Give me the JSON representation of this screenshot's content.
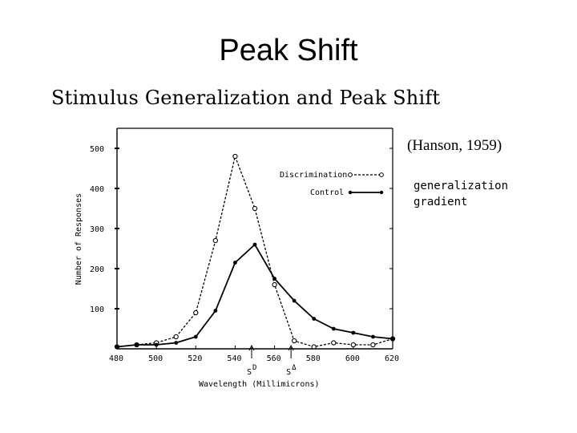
{
  "slide": {
    "title": "Peak Shift",
    "subtitle": "Stimulus Generalization and Peak Shift",
    "citation": "(Hanson, 1959)",
    "annotation_line1": "generalization",
    "annotation_line2": "gradient"
  },
  "chart_data": {
    "type": "line",
    "title": "Stimulus Generalization and Peak Shift",
    "xlabel": "Wavelength (Millimicrons)",
    "ylabel": "Number of Responses",
    "xlim": [
      480,
      620
    ],
    "ylim": [
      0,
      550
    ],
    "xticks": [
      480,
      500,
      520,
      540,
      560,
      580,
      600,
      620
    ],
    "yticks": [
      100,
      200,
      300,
      400,
      500
    ],
    "x": [
      480,
      490,
      500,
      510,
      520,
      530,
      540,
      550,
      560,
      570,
      580,
      590,
      600,
      610,
      620
    ],
    "series": [
      {
        "name": "Discrimination",
        "style": "dashed",
        "marker": "open-circle",
        "values": [
          5,
          10,
          15,
          30,
          90,
          270,
          480,
          350,
          160,
          20,
          5,
          15,
          10,
          10,
          25
        ]
      },
      {
        "name": "Control",
        "style": "solid",
        "marker": "filled-circle",
        "values": [
          5,
          10,
          10,
          15,
          30,
          95,
          215,
          260,
          175,
          120,
          75,
          50,
          40,
          30,
          25
        ]
      }
    ],
    "markers": [
      {
        "label": "S",
        "sup": "D",
        "x": 550
      },
      {
        "label": "S",
        "sup": "Δ",
        "x": 570
      }
    ],
    "legend_position": "top-right"
  }
}
